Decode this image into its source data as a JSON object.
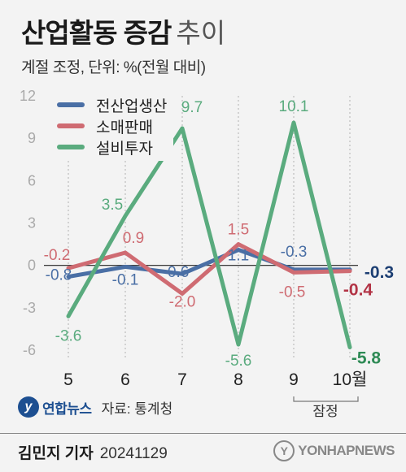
{
  "header": {
    "title": "산업활동 증감",
    "title_suffix": "추이",
    "subtitle": "계절 조정, 단위: %(전월 대비)"
  },
  "chart_data": {
    "type": "line",
    "categories": [
      "5",
      "6",
      "7",
      "8",
      "9",
      "10월"
    ],
    "ylim": [
      -6,
      12
    ],
    "yticks": [
      "12",
      "9",
      "6",
      "3",
      "0",
      "-3",
      "-6"
    ],
    "series": [
      {
        "name": "전산업생산",
        "color": "#4a6fa5",
        "values": [
          -0.8,
          -0.1,
          -0.6,
          1.1,
          -0.3,
          -0.3
        ],
        "labels": [
          "-0.8",
          "-0.1",
          "-0.6",
          "1.1",
          "-0.3",
          "-0.3"
        ]
      },
      {
        "name": "소매판매",
        "color": "#cf6b72",
        "values": [
          -0.2,
          0.9,
          -2.0,
          1.5,
          -0.5,
          -0.4
        ],
        "labels": [
          "-0.2",
          "0.9",
          "-2.0",
          "1.5",
          "-0.5",
          "-0.4"
        ]
      },
      {
        "name": "설비투자",
        "color": "#5aab7e",
        "values": [
          -3.6,
          3.5,
          9.7,
          -5.6,
          10.1,
          -5.8
        ],
        "labels": [
          "-3.6",
          "3.5",
          "9.7",
          "-5.6",
          "10.1",
          "-5.8"
        ]
      }
    ],
    "preliminary_label": "잠정",
    "grid": "vertical-dotted",
    "legend": "top-left"
  },
  "source": {
    "logo_text": "연합뉴스",
    "text": "자료: 통계청"
  },
  "footer": {
    "author": "김민지 기자",
    "date": "20241129",
    "watermark": "YONHAPNEWS"
  }
}
